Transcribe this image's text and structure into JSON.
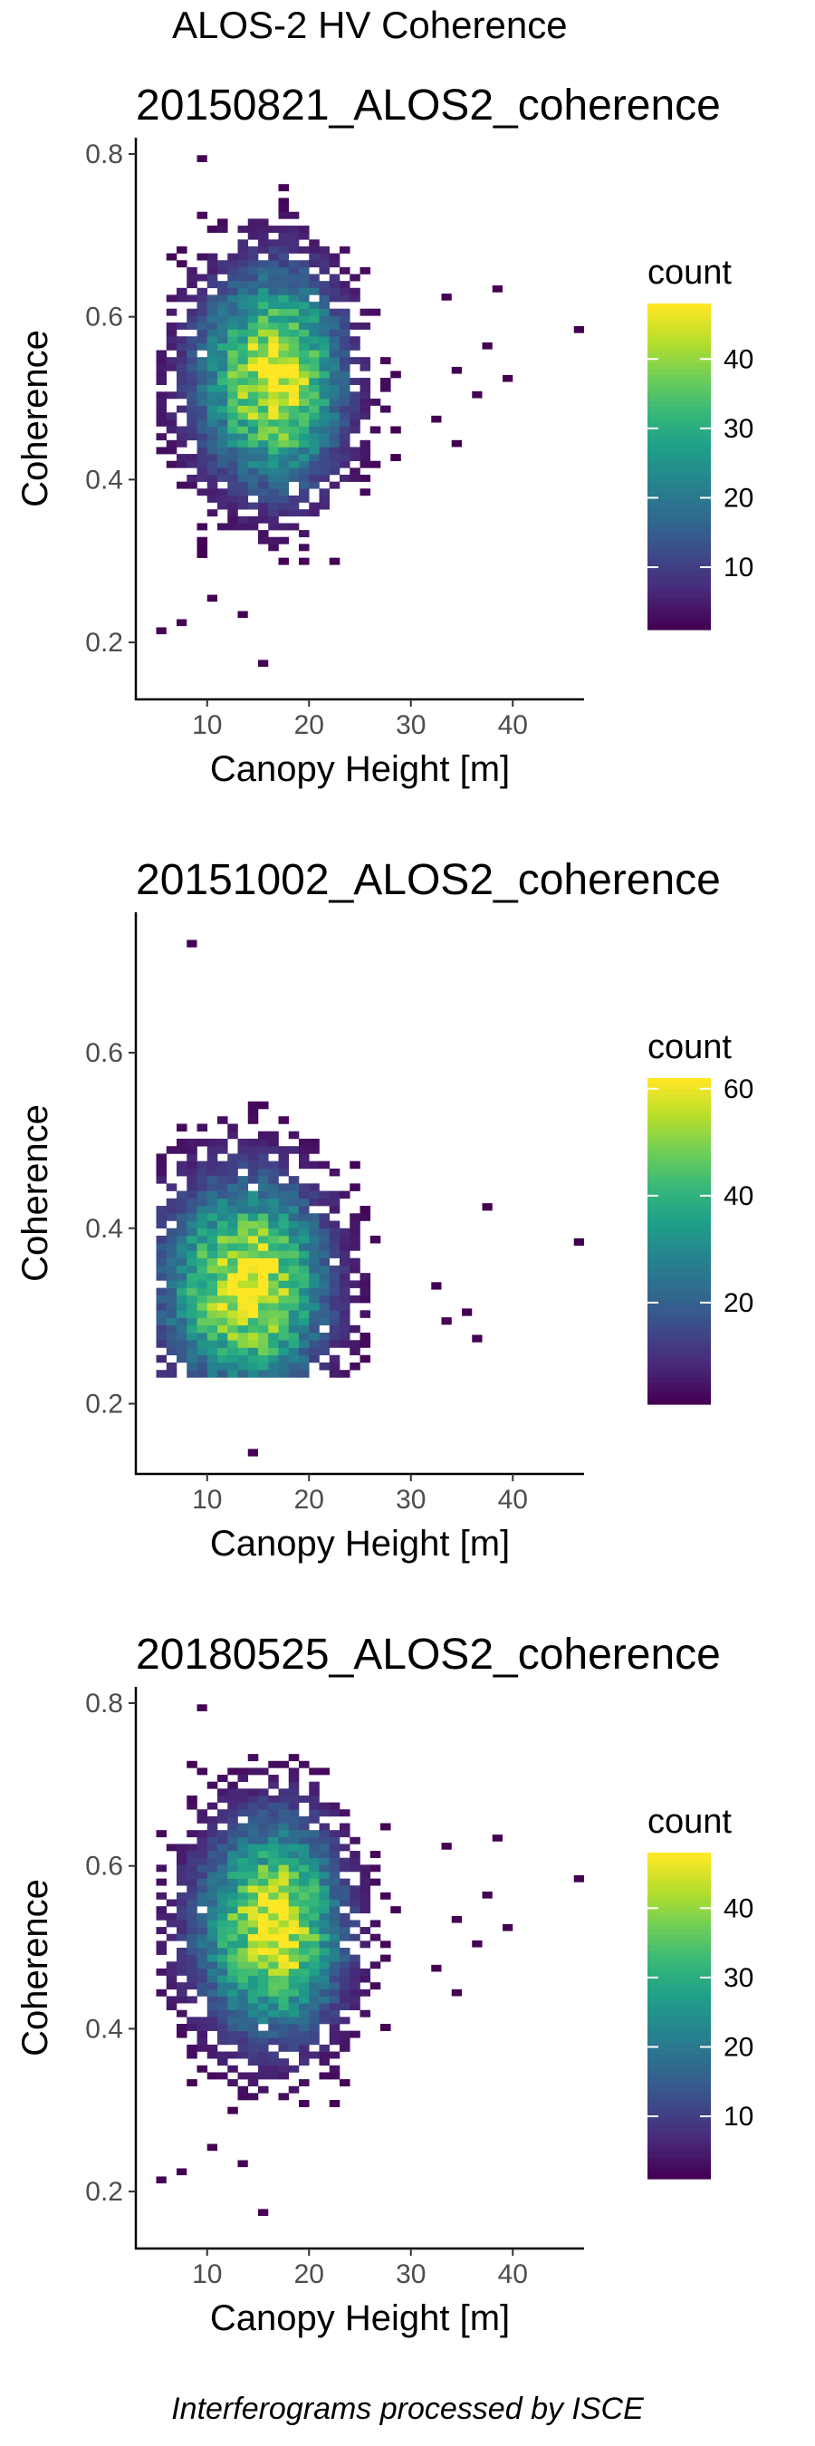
{
  "figure": {
    "title": "ALOS-2 HV Coherence",
    "caption": "Interferograms processed by ISCE"
  },
  "colormap": {
    "name": "viridis",
    "stops": [
      "#440154",
      "#482878",
      "#3e4989",
      "#31688e",
      "#26828e",
      "#1f9e89",
      "#35b779",
      "#6ece58",
      "#b5de2b",
      "#fde725"
    ]
  },
  "chart_data": [
    {
      "type": "heatmap",
      "title": "20150821_ALOS2_coherence",
      "xlabel": "Canopy Height [m]",
      "ylabel": "Coherence",
      "xlim": [
        3,
        47
      ],
      "ylim": [
        0.13,
        0.82
      ],
      "xticks": [
        10,
        20,
        30,
        40
      ],
      "yticks": [
        0.2,
        0.4,
        0.6,
        0.8
      ],
      "grid": false,
      "legend": {
        "title": "count",
        "position": "right",
        "ticks": [
          10,
          20,
          30,
          40
        ],
        "range": [
          1,
          48
        ]
      },
      "density": {
        "center_height": 16.5,
        "center_coherence": 0.52,
        "peak_count": 48,
        "height_range": [
          5,
          28
        ],
        "coherence_range": [
          0.28,
          0.76
        ]
      },
      "outliers": [
        [
          33,
          0.62
        ],
        [
          37,
          0.56
        ],
        [
          34,
          0.53
        ],
        [
          36,
          0.5
        ],
        [
          32,
          0.47
        ],
        [
          34,
          0.44
        ],
        [
          38,
          0.63
        ],
        [
          46,
          0.58
        ],
        [
          39,
          0.52
        ],
        [
          15,
          0.17
        ],
        [
          13,
          0.23
        ],
        [
          7,
          0.22
        ],
        [
          5,
          0.21
        ],
        [
          10,
          0.25
        ],
        [
          9,
          0.79
        ]
      ]
    },
    {
      "type": "heatmap",
      "title": "20151002_ALOS2_coherence",
      "xlabel": "Canopy Height [m]",
      "ylabel": "Coherence",
      "xlim": [
        3,
        47
      ],
      "ylim": [
        0.12,
        0.76
      ],
      "xticks": [
        10,
        20,
        30,
        40
      ],
      "yticks": [
        0.2,
        0.4,
        0.6
      ],
      "grid": false,
      "legend": {
        "title": "count",
        "position": "right",
        "ticks": [
          20,
          40,
          60
        ],
        "range": [
          1,
          62
        ]
      },
      "density": {
        "center_height": 14,
        "center_coherence": 0.33,
        "peak_count": 62,
        "height_range": [
          5,
          31
        ],
        "coherence_range": [
          0.24,
          0.68
        ]
      },
      "outliers": [
        [
          37,
          0.42
        ],
        [
          46,
          0.38
        ],
        [
          35,
          0.3
        ],
        [
          33,
          0.29
        ],
        [
          36,
          0.27
        ],
        [
          14,
          0.14
        ],
        [
          8,
          0.72
        ],
        [
          32,
          0.33
        ]
      ]
    },
    {
      "type": "heatmap",
      "title": "20180525_ALOS2_coherence",
      "xlabel": "Canopy Height [m]",
      "ylabel": "Coherence",
      "xlim": [
        3,
        47
      ],
      "ylim": [
        0.13,
        0.82
      ],
      "xticks": [
        10,
        20,
        30,
        40
      ],
      "yticks": [
        0.2,
        0.4,
        0.6,
        0.8
      ],
      "grid": false,
      "legend": {
        "title": "count",
        "position": "right",
        "ticks": [
          10,
          20,
          30,
          40
        ],
        "range": [
          1,
          48
        ]
      },
      "density": {
        "center_height": 16.5,
        "center_coherence": 0.52,
        "peak_count": 48,
        "height_range": [
          5,
          28
        ],
        "coherence_range": [
          0.28,
          0.76
        ]
      },
      "outliers": [
        [
          33,
          0.62
        ],
        [
          37,
          0.56
        ],
        [
          34,
          0.53
        ],
        [
          36,
          0.5
        ],
        [
          32,
          0.47
        ],
        [
          34,
          0.44
        ],
        [
          38,
          0.63
        ],
        [
          46,
          0.58
        ],
        [
          39,
          0.52
        ],
        [
          15,
          0.17
        ],
        [
          13,
          0.23
        ],
        [
          7,
          0.22
        ],
        [
          5,
          0.21
        ],
        [
          10,
          0.25
        ],
        [
          9,
          0.79
        ]
      ]
    }
  ]
}
